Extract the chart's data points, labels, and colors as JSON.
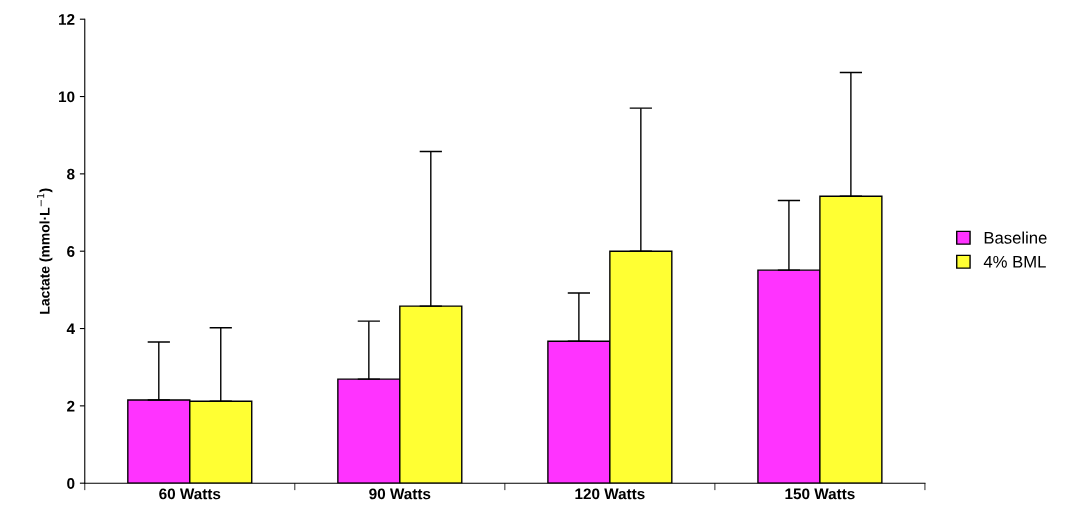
{
  "chart_data": {
    "type": "bar",
    "ylabel": "Lactate (mmol·L$^{−1}$)",
    "categories": [
      "60 Watts",
      "90 Watts",
      "120 Watts",
      "150 Watts"
    ],
    "series": [
      {
        "name": "Baseline",
        "color": "#ff33ff",
        "values": [
          2.15,
          2.69,
          3.67,
          5.51
        ],
        "errors": [
          [
            2.15,
            3.65
          ],
          [
            2.69,
            4.19
          ],
          [
            3.67,
            4.92
          ],
          [
            5.51,
            7.31
          ]
        ]
      },
      {
        "name": "4% BML",
        "color": "#ffff33",
        "values": [
          2.12,
          4.58,
          6.0,
          7.42
        ],
        "errors": [
          [
            2.12,
            4.02
          ],
          [
            4.58,
            8.58
          ],
          [
            6.0,
            9.7
          ],
          [
            7.42,
            10.62
          ]
        ]
      }
    ],
    "ylim": [
      0,
      12
    ],
    "yticks": [
      0,
      2,
      4,
      6,
      8,
      10,
      12
    ],
    "grid": false,
    "legend": "right"
  }
}
